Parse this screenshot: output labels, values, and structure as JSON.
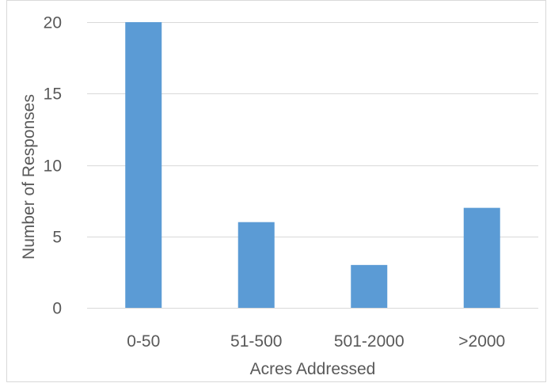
{
  "chart_data": {
    "type": "bar",
    "categories": [
      "0-50",
      "51-500",
      "501-2000",
      ">2000"
    ],
    "values": [
      20,
      6,
      3,
      7
    ],
    "title": "",
    "xlabel": "Acres Addressed",
    "ylabel": "Number of Responses",
    "ylim": [
      0,
      20
    ],
    "yticks": [
      "0",
      "5",
      "10",
      "15",
      "20"
    ],
    "grid": true,
    "legend": "none",
    "bar_color": "#5b9bd5"
  }
}
